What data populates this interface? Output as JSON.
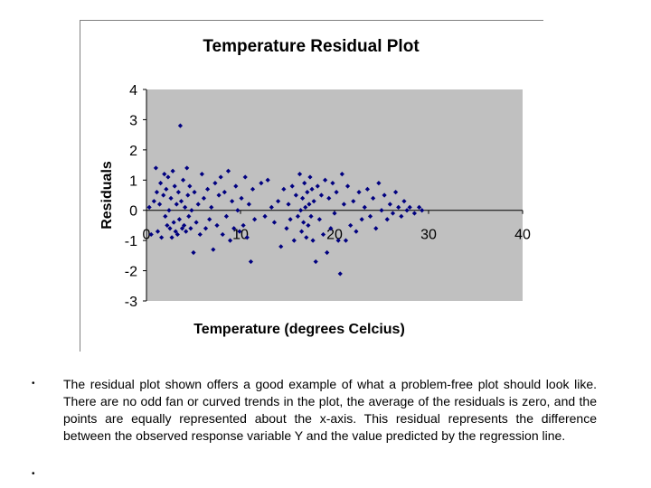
{
  "chart_data": {
    "type": "scatter",
    "title": "Temperature Residual Plot",
    "xlabel": "Temperature (degrees Celcius)",
    "ylabel": "Residuals",
    "xlim": [
      0,
      40
    ],
    "ylim": [
      -3,
      4
    ],
    "xticks": [
      "0",
      "10",
      "20",
      "30",
      "40"
    ],
    "yticks": [
      "4",
      "3",
      "2",
      "1",
      "0",
      "-1",
      "-2",
      "-3"
    ],
    "grid": false,
    "legend": "none",
    "colors": {
      "plot_area": "#c0c0c0",
      "marker": "#000080"
    },
    "series": [
      {
        "points": [
          [
            0.3,
            0.1
          ],
          [
            0.5,
            -0.8
          ],
          [
            0.8,
            0.3
          ],
          [
            1.0,
            1.4
          ],
          [
            1.1,
            0.6
          ],
          [
            1.2,
            -0.7
          ],
          [
            1.4,
            0.2
          ],
          [
            1.5,
            0.9
          ],
          [
            1.6,
            -0.9
          ],
          [
            1.8,
            0.5
          ],
          [
            1.9,
            1.2
          ],
          [
            2.0,
            -0.2
          ],
          [
            2.1,
            0.7
          ],
          [
            2.2,
            -0.5
          ],
          [
            2.3,
            1.1
          ],
          [
            2.4,
            0.0
          ],
          [
            2.5,
            -0.6
          ],
          [
            2.6,
            0.4
          ],
          [
            2.7,
            -0.9
          ],
          [
            2.8,
            1.3
          ],
          [
            2.9,
            -0.4
          ],
          [
            3.0,
            0.8
          ],
          [
            3.1,
            -0.7
          ],
          [
            3.2,
            0.2
          ],
          [
            3.3,
            -0.8
          ],
          [
            3.4,
            0.6
          ],
          [
            3.5,
            -0.3
          ],
          [
            3.6,
            2.8
          ],
          [
            3.7,
            0.3
          ],
          [
            3.8,
            -0.6
          ],
          [
            3.9,
            1.0
          ],
          [
            4.0,
            -0.5
          ],
          [
            4.1,
            0.1
          ],
          [
            4.2,
            -0.7
          ],
          [
            4.3,
            1.4
          ],
          [
            4.4,
            0.5
          ],
          [
            4.5,
            -0.2
          ],
          [
            4.6,
            0.8
          ],
          [
            4.7,
            -0.6
          ],
          [
            4.8,
            0.0
          ],
          [
            5.0,
            -1.4
          ],
          [
            5.1,
            0.6
          ],
          [
            5.3,
            -0.4
          ],
          [
            5.5,
            0.2
          ],
          [
            5.7,
            -0.8
          ],
          [
            5.9,
            1.2
          ],
          [
            6.1,
            0.4
          ],
          [
            6.3,
            -0.6
          ],
          [
            6.5,
            0.7
          ],
          [
            6.7,
            -0.3
          ],
          [
            6.9,
            0.1
          ],
          [
            7.1,
            -1.3
          ],
          [
            7.3,
            0.9
          ],
          [
            7.5,
            -0.5
          ],
          [
            7.7,
            0.5
          ],
          [
            7.9,
            1.1
          ],
          [
            8.1,
            -0.8
          ],
          [
            8.3,
            0.6
          ],
          [
            8.5,
            -0.2
          ],
          [
            8.7,
            1.3
          ],
          [
            8.9,
            -1.0
          ],
          [
            9.1,
            0.3
          ],
          [
            9.3,
            -0.6
          ],
          [
            9.5,
            0.8
          ],
          [
            9.7,
            0.0
          ],
          [
            9.9,
            -0.7
          ],
          [
            10.1,
            0.4
          ],
          [
            10.3,
            -0.5
          ],
          [
            10.5,
            1.1
          ],
          [
            10.7,
            -0.9
          ],
          [
            10.9,
            0.2
          ],
          [
            11.1,
            -1.7
          ],
          [
            11.3,
            0.7
          ],
          [
            11.5,
            -0.3
          ],
          [
            12.2,
            0.9
          ],
          [
            12.6,
            -0.2
          ],
          [
            12.9,
            1.0
          ],
          [
            13.3,
            0.1
          ],
          [
            13.6,
            -0.4
          ],
          [
            14.0,
            0.3
          ],
          [
            14.3,
            -1.2
          ],
          [
            14.6,
            0.7
          ],
          [
            14.9,
            -0.6
          ],
          [
            15.1,
            0.2
          ],
          [
            15.3,
            -0.3
          ],
          [
            15.5,
            0.8
          ],
          [
            15.7,
            -1.0
          ],
          [
            15.9,
            0.5
          ],
          [
            16.1,
            -0.2
          ],
          [
            16.3,
            1.2
          ],
          [
            16.4,
            0.0
          ],
          [
            16.5,
            -0.7
          ],
          [
            16.6,
            0.4
          ],
          [
            16.7,
            -0.4
          ],
          [
            16.8,
            0.9
          ],
          [
            16.9,
            0.1
          ],
          [
            17.0,
            -0.9
          ],
          [
            17.1,
            0.6
          ],
          [
            17.2,
            -0.5
          ],
          [
            17.3,
            0.2
          ],
          [
            17.4,
            1.1
          ],
          [
            17.5,
            -0.2
          ],
          [
            17.6,
            0.7
          ],
          [
            17.7,
            -1.0
          ],
          [
            17.8,
            0.3
          ],
          [
            18.0,
            -1.7
          ],
          [
            18.2,
            0.8
          ],
          [
            18.4,
            -0.3
          ],
          [
            18.6,
            0.5
          ],
          [
            18.8,
            -0.8
          ],
          [
            19.0,
            1.0
          ],
          [
            19.2,
            -1.4
          ],
          [
            19.4,
            0.4
          ],
          [
            19.6,
            -0.6
          ],
          [
            19.8,
            0.9
          ],
          [
            20.0,
            -0.1
          ],
          [
            20.2,
            0.6
          ],
          [
            20.4,
            -1.0
          ],
          [
            20.6,
            -2.1
          ],
          [
            20.8,
            1.2
          ],
          [
            21.0,
            0.2
          ],
          [
            21.2,
            -1.0
          ],
          [
            21.4,
            0.8
          ],
          [
            21.7,
            -0.5
          ],
          [
            22.0,
            0.3
          ],
          [
            22.3,
            -0.7
          ],
          [
            22.6,
            0.6
          ],
          [
            22.9,
            -0.3
          ],
          [
            23.2,
            0.1
          ],
          [
            23.5,
            0.7
          ],
          [
            23.8,
            -0.2
          ],
          [
            24.1,
            0.4
          ],
          [
            24.4,
            -0.6
          ],
          [
            24.7,
            0.9
          ],
          [
            25.0,
            0.0
          ],
          [
            25.3,
            0.5
          ],
          [
            25.6,
            -0.3
          ],
          [
            25.9,
            0.2
          ],
          [
            26.2,
            -0.1
          ],
          [
            26.5,
            0.6
          ],
          [
            26.8,
            0.1
          ],
          [
            27.1,
            -0.2
          ],
          [
            27.4,
            0.3
          ],
          [
            27.7,
            0.0
          ],
          [
            28.0,
            0.1
          ],
          [
            28.5,
            -0.1
          ],
          [
            29.0,
            0.1
          ],
          [
            29.3,
            0.0
          ]
        ]
      }
    ]
  },
  "caption": {
    "bullet_symbol": "•",
    "text": "The residual plot shown offers a good example of what a problem-free plot should look like. There are no odd fan or curved trends in the plot, the average of the residuals is zero, and the points are equally represented about the x-axis. This residual represents the difference between the observed response variable Y and the value predicted by the regression line."
  }
}
